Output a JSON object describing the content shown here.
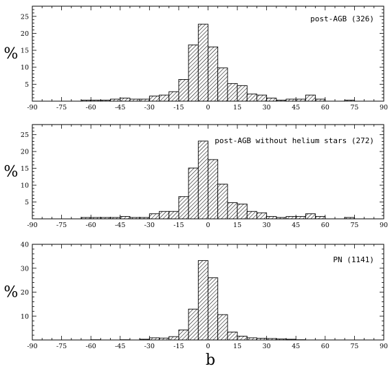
{
  "chart_data": [
    {
      "type": "bar",
      "label": "post-AGB (326)",
      "ylabel": "%",
      "xlabel": "",
      "xlim": [
        -90,
        90
      ],
      "ylim": [
        0,
        28
      ],
      "xticks": [
        -90,
        -75,
        -60,
        -45,
        -30,
        -15,
        0,
        15,
        30,
        45,
        60,
        75,
        90
      ],
      "yticks": [
        5,
        10,
        15,
        20,
        25
      ],
      "bin_width": 5,
      "bins": [
        {
          "x0": -65,
          "value": 0.3
        },
        {
          "x0": -60,
          "value": 0.3
        },
        {
          "x0": -55,
          "value": 0.3
        },
        {
          "x0": -50,
          "value": 0.6
        },
        {
          "x0": -45,
          "value": 0.9
        },
        {
          "x0": -40,
          "value": 0.6
        },
        {
          "x0": -35,
          "value": 0.6
        },
        {
          "x0": -30,
          "value": 1.5
        },
        {
          "x0": -25,
          "value": 1.8
        },
        {
          "x0": -20,
          "value": 2.8
        },
        {
          "x0": -15,
          "value": 6.4
        },
        {
          "x0": -10,
          "value": 16.6
        },
        {
          "x0": -5,
          "value": 22.7
        },
        {
          "x0": 0,
          "value": 16.0
        },
        {
          "x0": 5,
          "value": 9.8
        },
        {
          "x0": 10,
          "value": 5.2
        },
        {
          "x0": 15,
          "value": 4.6
        },
        {
          "x0": 20,
          "value": 2.1
        },
        {
          "x0": 25,
          "value": 1.8
        },
        {
          "x0": 30,
          "value": 0.9
        },
        {
          "x0": 35,
          "value": 0.3
        },
        {
          "x0": 40,
          "value": 0.6
        },
        {
          "x0": 45,
          "value": 0.6
        },
        {
          "x0": 50,
          "value": 1.8
        },
        {
          "x0": 55,
          "value": 0.6
        },
        {
          "x0": 70,
          "value": 0.3
        }
      ]
    },
    {
      "type": "bar",
      "label": "post-AGB without helium stars (272)",
      "ylabel": "%",
      "xlabel": "",
      "xlim": [
        -90,
        90
      ],
      "ylim": [
        0,
        28
      ],
      "xticks": [
        -90,
        -75,
        -60,
        -45,
        -30,
        -15,
        0,
        15,
        30,
        45,
        60,
        75,
        90
      ],
      "yticks": [
        5,
        10,
        15,
        20,
        25
      ],
      "bin_width": 5,
      "bins": [
        {
          "x0": -65,
          "value": 0.4
        },
        {
          "x0": -60,
          "value": 0.4
        },
        {
          "x0": -55,
          "value": 0.4
        },
        {
          "x0": -50,
          "value": 0.4
        },
        {
          "x0": -45,
          "value": 0.7
        },
        {
          "x0": -40,
          "value": 0.4
        },
        {
          "x0": -35,
          "value": 0.4
        },
        {
          "x0": -30,
          "value": 1.5
        },
        {
          "x0": -25,
          "value": 2.2
        },
        {
          "x0": -20,
          "value": 2.2
        },
        {
          "x0": -15,
          "value": 6.6
        },
        {
          "x0": -10,
          "value": 15.1
        },
        {
          "x0": -5,
          "value": 23.1
        },
        {
          "x0": 0,
          "value": 17.6
        },
        {
          "x0": 5,
          "value": 10.3
        },
        {
          "x0": 10,
          "value": 4.8
        },
        {
          "x0": 15,
          "value": 4.4
        },
        {
          "x0": 20,
          "value": 2.2
        },
        {
          "x0": 25,
          "value": 1.8
        },
        {
          "x0": 30,
          "value": 0.7
        },
        {
          "x0": 35,
          "value": 0.4
        },
        {
          "x0": 40,
          "value": 0.7
        },
        {
          "x0": 45,
          "value": 0.7
        },
        {
          "x0": 50,
          "value": 1.5
        },
        {
          "x0": 55,
          "value": 0.7
        },
        {
          "x0": 70,
          "value": 0.4
        }
      ]
    },
    {
      "type": "bar",
      "label": "PN (1141)",
      "ylabel": "%",
      "xlabel": "b",
      "xlim": [
        -90,
        90
      ],
      "ylim": [
        0,
        40
      ],
      "xticks": [
        -90,
        -75,
        -60,
        -45,
        -30,
        -15,
        0,
        15,
        30,
        45,
        60,
        75,
        90
      ],
      "yticks": [
        10,
        20,
        30,
        40
      ],
      "bin_width": 5,
      "bins": [
        {
          "x0": -60,
          "value": 0.1
        },
        {
          "x0": -45,
          "value": 0.1
        },
        {
          "x0": -35,
          "value": 0.3
        },
        {
          "x0": -30,
          "value": 0.9
        },
        {
          "x0": -25,
          "value": 0.8
        },
        {
          "x0": -20,
          "value": 1.4
        },
        {
          "x0": -15,
          "value": 4.2
        },
        {
          "x0": -10,
          "value": 12.9
        },
        {
          "x0": -5,
          "value": 33.2
        },
        {
          "x0": 0,
          "value": 26.0
        },
        {
          "x0": 5,
          "value": 10.6
        },
        {
          "x0": 10,
          "value": 3.3
        },
        {
          "x0": 15,
          "value": 1.6
        },
        {
          "x0": 20,
          "value": 0.9
        },
        {
          "x0": 25,
          "value": 0.7
        },
        {
          "x0": 30,
          "value": 0.6
        },
        {
          "x0": 35,
          "value": 0.4
        },
        {
          "x0": 40,
          "value": 0.3
        },
        {
          "x0": 45,
          "value": 0.1
        }
      ]
    }
  ]
}
